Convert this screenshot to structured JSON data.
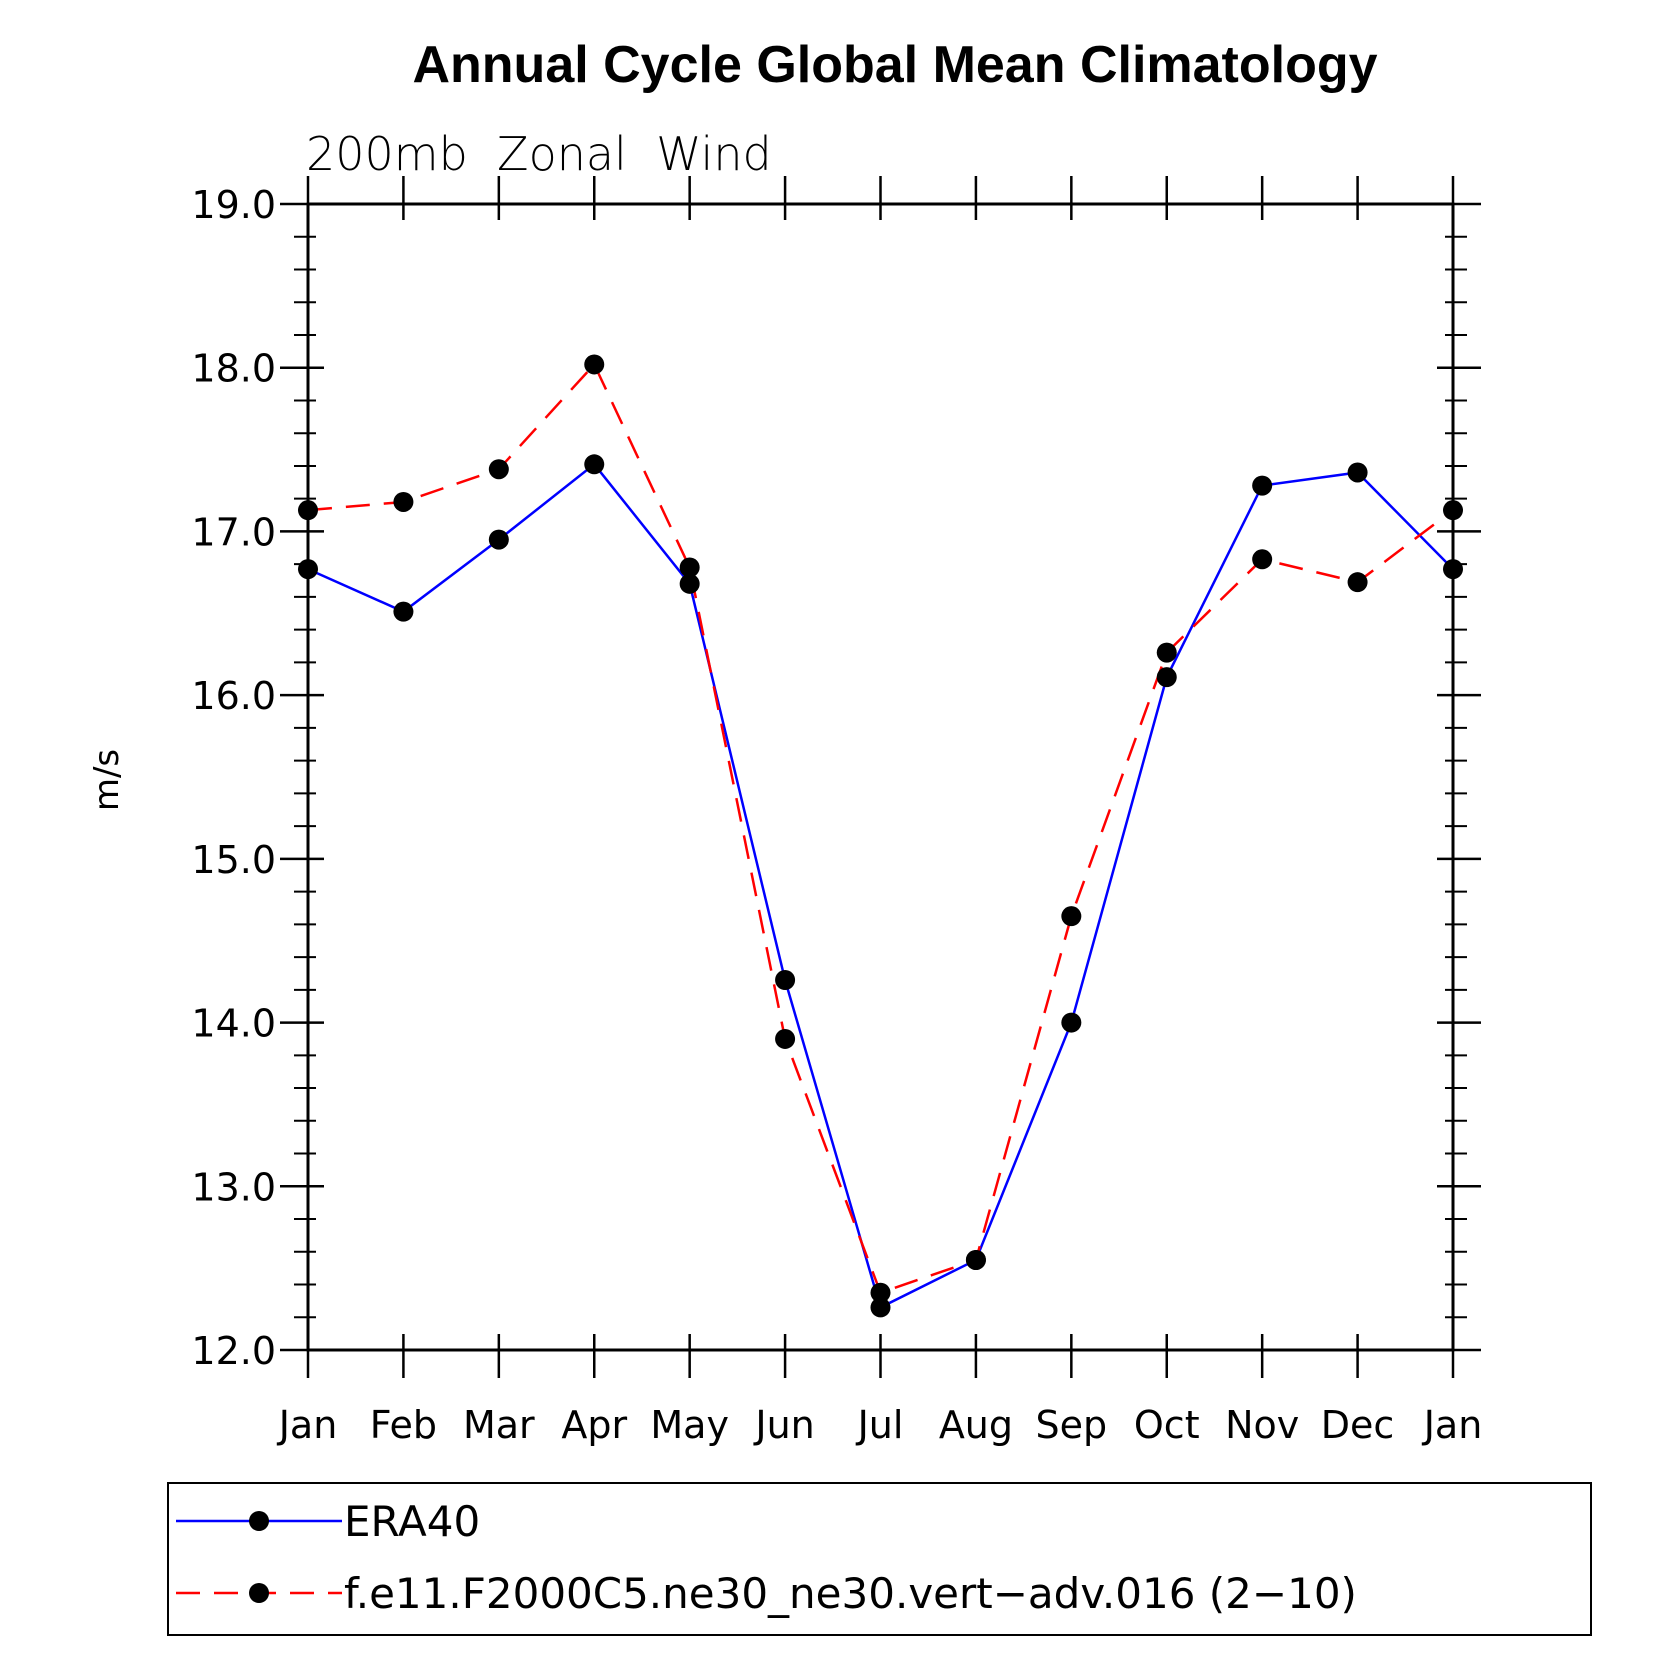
{
  "chart_data": {
    "type": "line",
    "title": "Annual Cycle Global Mean Climatology",
    "subtitle": "200mb  Zonal  Wind",
    "xlabel": "",
    "ylabel": "m/s",
    "categories": [
      "Jan",
      "Feb",
      "Mar",
      "Apr",
      "May",
      "Jun",
      "Jul",
      "Aug",
      "Sep",
      "Oct",
      "Nov",
      "Dec",
      "Jan"
    ],
    "ylim": [
      12.0,
      19.0
    ],
    "yticks": [
      "12.0",
      "13.0",
      "14.0",
      "15.0",
      "16.0",
      "17.0",
      "18.0",
      "19.0"
    ],
    "legend_position": "bottom",
    "series": [
      {
        "name": "ERA40",
        "color": "#0000ff",
        "dash": "solid",
        "values": [
          16.77,
          16.51,
          16.95,
          17.41,
          16.68,
          14.26,
          12.26,
          12.55,
          14.0,
          16.11,
          17.28,
          17.36,
          16.77
        ]
      },
      {
        "name": "f.e11.F2000C5.ne30_ne30.vert−adv.016 (2−10)",
        "color": "#ff0000",
        "dash": "dashed",
        "values": [
          17.13,
          17.18,
          17.38,
          18.02,
          16.78,
          13.9,
          12.35,
          12.55,
          14.65,
          16.26,
          16.83,
          16.69,
          17.13
        ]
      }
    ]
  }
}
